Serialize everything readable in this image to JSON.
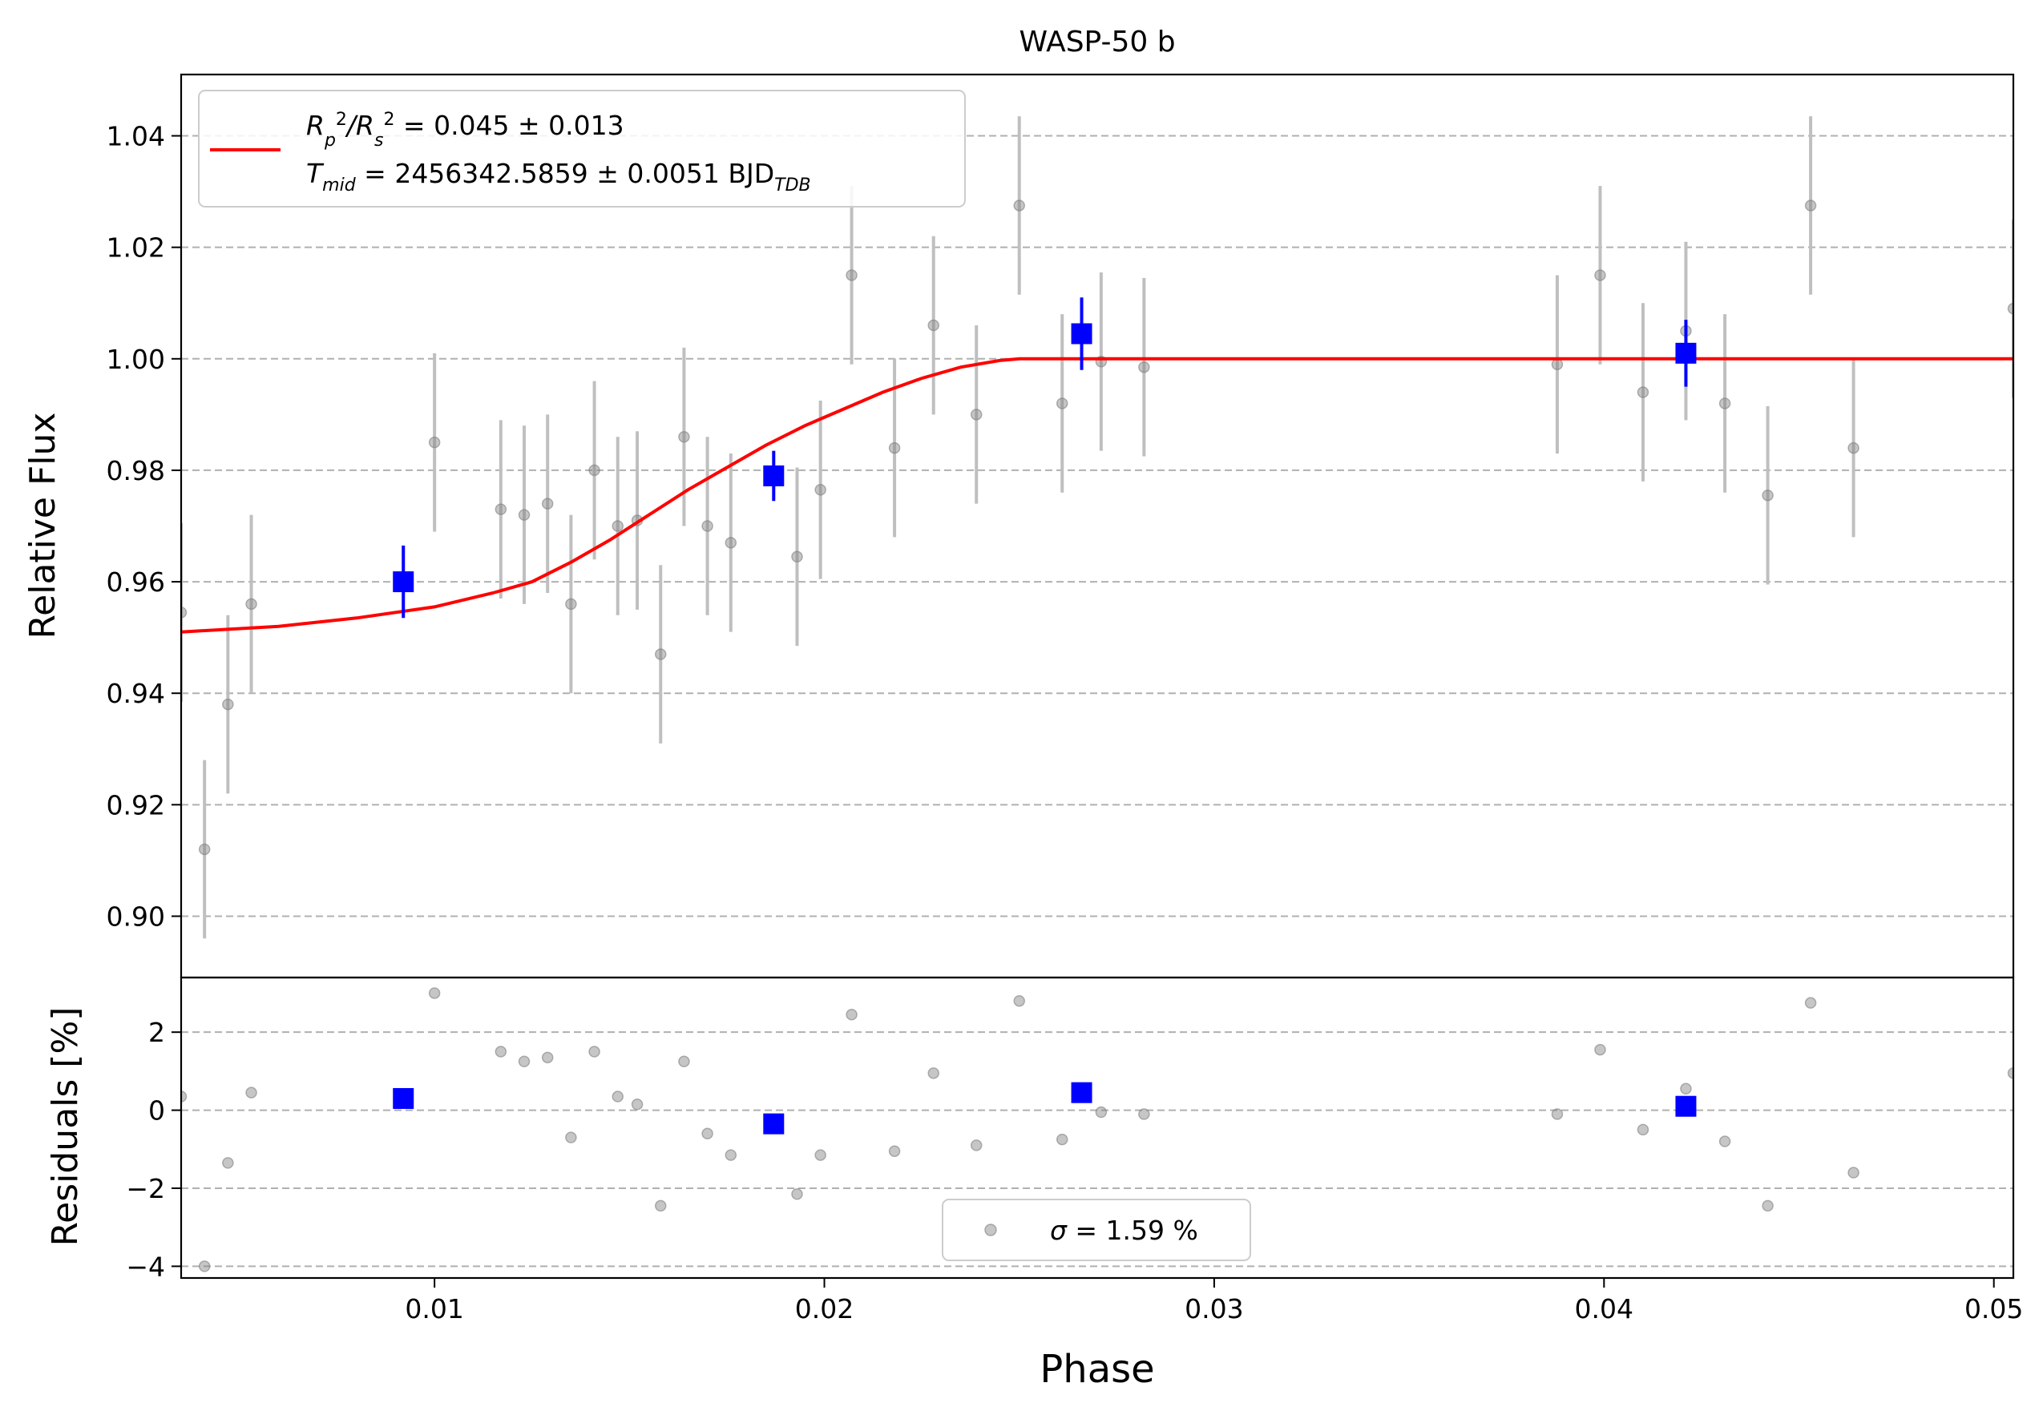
{
  "chart_data": [
    {
      "panel": "main",
      "type": "scatter",
      "title": "WASP-50 b",
      "xlabel": "",
      "ylabel": "Relative Flux",
      "xlim": [
        0.0035,
        0.0505
      ],
      "ylim": [
        0.889,
        1.051
      ],
      "yticks": [
        "0.90",
        "0.92",
        "0.94",
        "0.96",
        "0.98",
        "1.00",
        "1.02",
        "1.04"
      ],
      "ytick_values": [
        0.9,
        0.92,
        0.94,
        0.96,
        0.98,
        1.0,
        1.02,
        1.04
      ],
      "grid": "horizontal dashed",
      "legend_position": "upper-left",
      "legend": {
        "line1": {
          "pre": "R",
          "sub1": "p",
          "sup1": "2",
          "mid": "/R",
          "sub2": "s",
          "sup2": "2",
          "post": " = 0.045 ± 0.013"
        },
        "line2": {
          "pre": "T",
          "sub1": "mid",
          "mid": " = 2456342.5859 ± 0.0051 BJD",
          "sub2": "TDB"
        }
      },
      "series": [
        {
          "kind": "data-points",
          "color": "#808080",
          "points": [
            {
              "x": 0.0035,
              "y": 0.9545,
              "err": 0.016
            },
            {
              "x": 0.0041,
              "y": 0.912,
              "err": 0.016
            },
            {
              "x": 0.0047,
              "y": 0.938,
              "err": 0.016
            },
            {
              "x": 0.0053,
              "y": 0.956,
              "err": 0.016
            },
            {
              "x": 0.01,
              "y": 0.985,
              "err": 0.016
            },
            {
              "x": 0.0117,
              "y": 0.973,
              "err": 0.016
            },
            {
              "x": 0.0123,
              "y": 0.972,
              "err": 0.016
            },
            {
              "x": 0.0129,
              "y": 0.974,
              "err": 0.016
            },
            {
              "x": 0.0135,
              "y": 0.956,
              "err": 0.016
            },
            {
              "x": 0.0141,
              "y": 0.98,
              "err": 0.016
            },
            {
              "x": 0.0147,
              "y": 0.97,
              "err": 0.016
            },
            {
              "x": 0.0152,
              "y": 0.971,
              "err": 0.016
            },
            {
              "x": 0.0158,
              "y": 0.947,
              "err": 0.016
            },
            {
              "x": 0.0164,
              "y": 0.986,
              "err": 0.016
            },
            {
              "x": 0.017,
              "y": 0.97,
              "err": 0.016
            },
            {
              "x": 0.0176,
              "y": 0.967,
              "err": 0.016
            },
            {
              "x": 0.0193,
              "y": 0.9645,
              "err": 0.016
            },
            {
              "x": 0.0199,
              "y": 0.9765,
              "err": 0.016
            },
            {
              "x": 0.0207,
              "y": 1.015,
              "err": 0.016
            },
            {
              "x": 0.0218,
              "y": 0.984,
              "err": 0.016
            },
            {
              "x": 0.0228,
              "y": 1.006,
              "err": 0.016
            },
            {
              "x": 0.0239,
              "y": 0.99,
              "err": 0.016
            },
            {
              "x": 0.025,
              "y": 1.0275,
              "err": 0.016
            },
            {
              "x": 0.0261,
              "y": 0.992,
              "err": 0.016
            },
            {
              "x": 0.0271,
              "y": 0.9995,
              "err": 0.016
            },
            {
              "x": 0.0282,
              "y": 0.9985,
              "err": 0.016
            },
            {
              "x": 0.0388,
              "y": 0.999,
              "err": 0.016
            },
            {
              "x": 0.0399,
              "y": 1.015,
              "err": 0.016
            },
            {
              "x": 0.041,
              "y": 0.994,
              "err": 0.016
            },
            {
              "x": 0.0421,
              "y": 1.005,
              "err": 0.016
            },
            {
              "x": 0.0431,
              "y": 0.992,
              "err": 0.016
            },
            {
              "x": 0.0442,
              "y": 0.9755,
              "err": 0.016
            },
            {
              "x": 0.0453,
              "y": 1.0275,
              "err": 0.016
            },
            {
              "x": 0.0464,
              "y": 0.984,
              "err": 0.016
            },
            {
              "x": 0.0505,
              "y": 1.009,
              "err": 0.016
            }
          ]
        },
        {
          "kind": "binned",
          "color": "#0000ff",
          "points": [
            {
              "x": 0.0092,
              "y": 0.96,
              "err": 0.0065
            },
            {
              "x": 0.0187,
              "y": 0.979,
              "err": 0.0045
            },
            {
              "x": 0.0266,
              "y": 1.0045,
              "err": 0.0065
            },
            {
              "x": 0.0421,
              "y": 1.001,
              "err": 0.006
            }
          ]
        },
        {
          "kind": "model",
          "color": "#ff0000",
          "points": [
            {
              "x": 0.0035,
              "y": 0.951
            },
            {
              "x": 0.006,
              "y": 0.952
            },
            {
              "x": 0.008,
              "y": 0.9535
            },
            {
              "x": 0.01,
              "y": 0.9555
            },
            {
              "x": 0.0115,
              "y": 0.958
            },
            {
              "x": 0.0125,
              "y": 0.96
            },
            {
              "x": 0.0135,
              "y": 0.9635
            },
            {
              "x": 0.0145,
              "y": 0.9675
            },
            {
              "x": 0.0155,
              "y": 0.972
            },
            {
              "x": 0.0165,
              "y": 0.9765
            },
            {
              "x": 0.0175,
              "y": 0.9805
            },
            {
              "x": 0.0185,
              "y": 0.9845
            },
            {
              "x": 0.0195,
              "y": 0.988
            },
            {
              "x": 0.0205,
              "y": 0.991
            },
            {
              "x": 0.0215,
              "y": 0.994
            },
            {
              "x": 0.0225,
              "y": 0.9965
            },
            {
              "x": 0.0235,
              "y": 0.9985
            },
            {
              "x": 0.0245,
              "y": 0.9997
            },
            {
              "x": 0.025,
              "y": 1.0
            },
            {
              "x": 0.0505,
              "y": 1.0
            }
          ]
        }
      ]
    },
    {
      "panel": "residuals",
      "type": "scatter",
      "xlabel": "Phase",
      "ylabel": "Residuals [%]",
      "xlim": [
        0.0035,
        0.0505
      ],
      "ylim": [
        -4.3,
        3.4
      ],
      "xticks": [
        "0.01",
        "0.02",
        "0.03",
        "0.04",
        "0.05"
      ],
      "xtick_values": [
        0.01,
        0.02,
        0.03,
        0.04,
        0.05
      ],
      "yticks": [
        "−4",
        "−2",
        "0",
        "2"
      ],
      "ytick_values": [
        -4,
        -2,
        0,
        2
      ],
      "grid": "horizontal dashed",
      "legend_position": "lower-center",
      "legend": {
        "symbol": "σ",
        "text": " = 1.59 %"
      },
      "series": [
        {
          "kind": "data-points",
          "color": "#808080",
          "points": [
            {
              "x": 0.0035,
              "y": 0.35
            },
            {
              "x": 0.0041,
              "y": -4.0
            },
            {
              "x": 0.0047,
              "y": -1.35
            },
            {
              "x": 0.0053,
              "y": 0.45
            },
            {
              "x": 0.01,
              "y": 3.0
            },
            {
              "x": 0.0117,
              "y": 1.5
            },
            {
              "x": 0.0123,
              "y": 1.25
            },
            {
              "x": 0.0129,
              "y": 1.35
            },
            {
              "x": 0.0135,
              "y": -0.7
            },
            {
              "x": 0.0141,
              "y": 1.5
            },
            {
              "x": 0.0147,
              "y": 0.35
            },
            {
              "x": 0.0152,
              "y": 0.15
            },
            {
              "x": 0.0158,
              "y": -2.45
            },
            {
              "x": 0.0164,
              "y": 1.25
            },
            {
              "x": 0.017,
              "y": -0.6
            },
            {
              "x": 0.0176,
              "y": -1.15
            },
            {
              "x": 0.0193,
              "y": -2.15
            },
            {
              "x": 0.0199,
              "y": -1.15
            },
            {
              "x": 0.0207,
              "y": 2.45
            },
            {
              "x": 0.0218,
              "y": -1.05
            },
            {
              "x": 0.0228,
              "y": 0.95
            },
            {
              "x": 0.0239,
              "y": -0.9
            },
            {
              "x": 0.025,
              "y": 2.8
            },
            {
              "x": 0.0261,
              "y": -0.75
            },
            {
              "x": 0.0271,
              "y": -0.05
            },
            {
              "x": 0.0282,
              "y": -0.1
            },
            {
              "x": 0.0388,
              "y": -0.1
            },
            {
              "x": 0.0399,
              "y": 1.55
            },
            {
              "x": 0.041,
              "y": -0.5
            },
            {
              "x": 0.0421,
              "y": 0.55
            },
            {
              "x": 0.0431,
              "y": -0.8
            },
            {
              "x": 0.0442,
              "y": -2.45
            },
            {
              "x": 0.0453,
              "y": 2.75
            },
            {
              "x": 0.0464,
              "y": -1.6
            },
            {
              "x": 0.0505,
              "y": 0.95
            }
          ]
        },
        {
          "kind": "binned",
          "color": "#0000ff",
          "points": [
            {
              "x": 0.0092,
              "y": 0.3
            },
            {
              "x": 0.0187,
              "y": -0.35
            },
            {
              "x": 0.0266,
              "y": 0.45
            },
            {
              "x": 0.0421,
              "y": 0.1
            }
          ]
        }
      ]
    }
  ]
}
